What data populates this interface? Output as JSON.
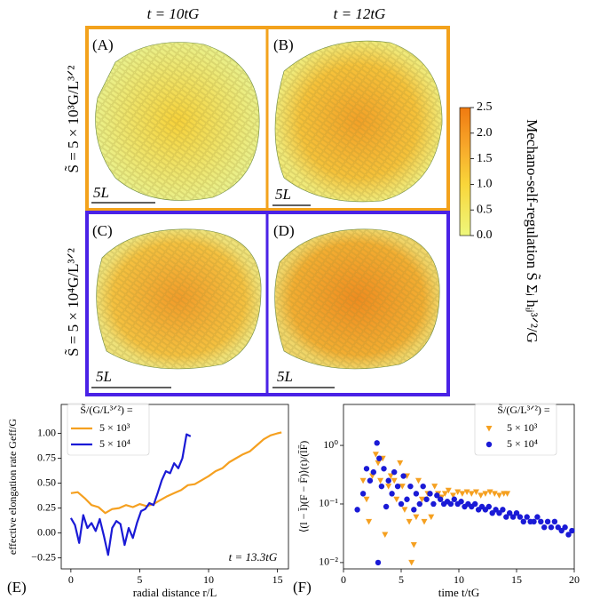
{
  "column_headers": [
    "t = 10tG",
    "t = 12tG"
  ],
  "row_labels": [
    "S̃ = 5 × 10³G/L³ᐟ²",
    "S̃ = 5 × 10⁴G/L³ᐟ²"
  ],
  "panels": [
    {
      "label": "(A)",
      "scale": "5L"
    },
    {
      "label": "(B)",
      "scale": "5L"
    },
    {
      "label": "(C)",
      "scale": "5L"
    },
    {
      "label": "(D)",
      "scale": "5L"
    }
  ],
  "colorbar": {
    "label": "Mechano-self-regulation  S̃ Σⱼ hᵢⱼ³ᐟ²/G",
    "lim": [
      0,
      2.5
    ],
    "ticks": [
      {
        "value": 0,
        "label": "0.0"
      },
      {
        "value": 0.5,
        "label": "0.5"
      },
      {
        "value": 1,
        "label": "1.0"
      },
      {
        "value": 1.5,
        "label": "1.5"
      },
      {
        "value": 2,
        "label": "2.0"
      },
      {
        "value": 2.5,
        "label": "2.5"
      }
    ]
  },
  "chart_data": [
    {
      "type": "line",
      "panel_label": "(E)",
      "xlabel": "radial distance r/L",
      "ylabel": "effective elongation rate Geff/G",
      "legend_title": "S̃/(G/L³ᐟ²) =",
      "annotation": "t = 13.3tG",
      "xlim": [
        -0.7,
        15.8
      ],
      "ylim": [
        -0.36,
        1.29
      ],
      "xticks": [
        0,
        5,
        10,
        15
      ],
      "yticks": [
        {
          "value": -0.25,
          "label": "−0.25"
        },
        {
          "value": 0,
          "label": "0.00"
        },
        0.25,
        {
          "value": 0.5,
          "label": "0.50"
        },
        0.75,
        {
          "value": 1,
          "label": "1.00"
        }
      ],
      "series": [
        {
          "name": "5 × 10³",
          "color": "#f5a020",
          "x": [
            0,
            0.5,
            1,
            1.5,
            2,
            2.5,
            3,
            3.5,
            4,
            4.5,
            5,
            5.5,
            6,
            6.5,
            7,
            7.5,
            8,
            8.5,
            9,
            9.5,
            10,
            10.5,
            11,
            11.5,
            12,
            12.5,
            13,
            13.5,
            14,
            14.5,
            15,
            15.3
          ],
          "values": [
            0.4,
            0.41,
            0.35,
            0.28,
            0.26,
            0.2,
            0.24,
            0.25,
            0.28,
            0.26,
            0.29,
            0.27,
            0.29,
            0.33,
            0.37,
            0.4,
            0.43,
            0.48,
            0.49,
            0.53,
            0.57,
            0.62,
            0.65,
            0.71,
            0.75,
            0.79,
            0.82,
            0.88,
            0.94,
            0.98,
            1.0,
            1.01
          ]
        },
        {
          "name": "5 × 10⁴",
          "color": "#1a1ad6",
          "x": [
            0,
            0.3,
            0.6,
            0.9,
            1.2,
            1.5,
            1.8,
            2.1,
            2.4,
            2.7,
            3.0,
            3.3,
            3.6,
            3.9,
            4.2,
            4.5,
            4.8,
            5.1,
            5.4,
            5.7,
            6.0,
            6.3,
            6.6,
            6.9,
            7.2,
            7.5,
            7.8,
            8.1,
            8.4,
            8.7
          ],
          "values": [
            0.15,
            0.08,
            -0.1,
            0.18,
            0.05,
            0.1,
            0.02,
            0.14,
            -0.03,
            -0.22,
            0.05,
            0.12,
            0.09,
            -0.12,
            0.05,
            -0.05,
            0.1,
            0.22,
            0.24,
            0.3,
            0.28,
            0.4,
            0.53,
            0.62,
            0.6,
            0.7,
            0.65,
            0.75,
            0.99,
            0.97
          ]
        }
      ]
    },
    {
      "type": "scatter",
      "panel_label": "(F)",
      "xlabel": "time t/tG",
      "ylabel": "⟨(l − l̄)(F − F̄)⟩(t)/(l̄F̄)",
      "legend_title": "S̃/(G/L³ᐟ²) =",
      "ylog": true,
      "xlim": [
        0,
        20
      ],
      "ylim": [
        0.0078,
        5.0
      ],
      "xticks": [
        0,
        5,
        10,
        15,
        20
      ],
      "yticks": [
        {
          "value": 0.01,
          "label": "10⁻²"
        },
        {
          "value": 0.1,
          "label": "10⁻¹"
        },
        {
          "value": 1,
          "label": "10⁰"
        }
      ],
      "series": [
        {
          "name": "5 × 10³",
          "color": "#f5a020",
          "marker": "v",
          "x": [
            1.7,
            2.0,
            2.2,
            2.5,
            2.8,
            3.0,
            3.2,
            3.4,
            3.6,
            3.9,
            4.1,
            4.4,
            4.6,
            4.9,
            5.1,
            5.3,
            5.5,
            5.7,
            5.9,
            6.1,
            6.3,
            6.5,
            6.8,
            7.0,
            7.3,
            7.6,
            7.9,
            8.2,
            8.5,
            8.8,
            9.1,
            9.5,
            9.9,
            10.3,
            10.7,
            11.1,
            11.5,
            11.9,
            12.3,
            12.7,
            13.1,
            13.5,
            13.9,
            14.2
          ],
          "values": [
            0.25,
            0.12,
            0.05,
            0.3,
            0.7,
            0.5,
            0.25,
            0.6,
            0.03,
            0.2,
            0.3,
            0.25,
            0.12,
            0.5,
            0.2,
            0.08,
            0.3,
            0.05,
            0.01,
            0.02,
            0.06,
            0.25,
            0.12,
            0.05,
            0.15,
            0.06,
            0.2,
            0.15,
            0.13,
            0.15,
            0.17,
            0.14,
            0.16,
            0.15,
            0.16,
            0.15,
            0.16,
            0.14,
            0.15,
            0.16,
            0.15,
            0.14,
            0.15,
            0.15
          ]
        },
        {
          "name": "5 × 10⁴",
          "color": "#1a1ad6",
          "marker": "o",
          "x": [
            1.2,
            1.7,
            2.0,
            2.3,
            2.6,
            2.9,
            3.1,
            3.3,
            3.5,
            3.7,
            3.9,
            4.2,
            4.4,
            4.7,
            5.0,
            5.2,
            5.5,
            5.8,
            6.1,
            6.3,
            6.6,
            6.9,
            7.2,
            7.5,
            7.8,
            8.1,
            8.4,
            8.7,
            9.0,
            9.3,
            9.6,
            9.9,
            10.2,
            10.5,
            10.8,
            11.1,
            11.4,
            11.7,
            12.0,
            12.3,
            12.6,
            12.9,
            13.2,
            13.5,
            13.8,
            14.1,
            14.4,
            14.7,
            15.0,
            15.3,
            15.6,
            15.9,
            16.2,
            16.5,
            16.8,
            17.1,
            17.4,
            17.7,
            18.0,
            18.3,
            18.6,
            18.9,
            19.2,
            19.5,
            19.8,
            3.0
          ],
          "values": [
            0.08,
            0.15,
            0.4,
            0.25,
            0.35,
            1.1,
            0.6,
            0.2,
            0.4,
            0.09,
            0.25,
            0.15,
            0.35,
            0.2,
            0.1,
            0.3,
            0.12,
            0.2,
            0.08,
            0.15,
            0.1,
            0.2,
            0.12,
            0.15,
            0.1,
            0.14,
            0.12,
            0.1,
            0.11,
            0.1,
            0.12,
            0.1,
            0.11,
            0.09,
            0.1,
            0.09,
            0.1,
            0.08,
            0.09,
            0.08,
            0.09,
            0.07,
            0.08,
            0.07,
            0.08,
            0.06,
            0.07,
            0.06,
            0.07,
            0.06,
            0.05,
            0.06,
            0.05,
            0.05,
            0.06,
            0.05,
            0.04,
            0.05,
            0.04,
            0.05,
            0.04,
            0.035,
            0.04,
            0.03,
            0.035,
            0.01
          ]
        }
      ]
    }
  ]
}
